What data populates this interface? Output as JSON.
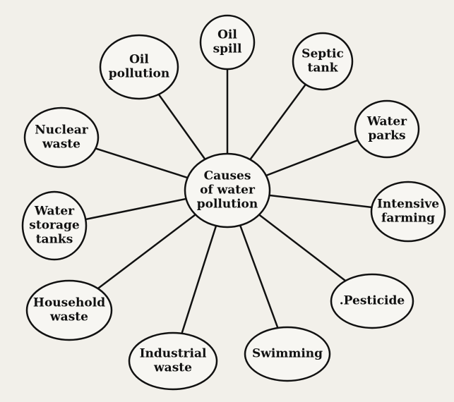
{
  "center": {
    "label": [
      "Causes",
      "of water",
      "pollution"
    ]
  },
  "nodes": [
    {
      "label": [
        "Oil",
        "spill"
      ]
    },
    {
      "label": [
        "Septic",
        "tank"
      ]
    },
    {
      "label": [
        "Water",
        "parks"
      ]
    },
    {
      "label": [
        "Intensive",
        "farming"
      ]
    },
    {
      "label": [
        ".Pesticide"
      ]
    },
    {
      "label": [
        "Swimming"
      ]
    },
    {
      "label": [
        "Industrial",
        "waste"
      ]
    },
    {
      "label": [
        "Household",
        "waste"
      ]
    },
    {
      "label": [
        "Water",
        "storage",
        "tanks"
      ]
    },
    {
      "label": [
        "Nuclear",
        "waste"
      ]
    },
    {
      "label": [
        "Oil",
        "pollution"
      ]
    }
  ]
}
